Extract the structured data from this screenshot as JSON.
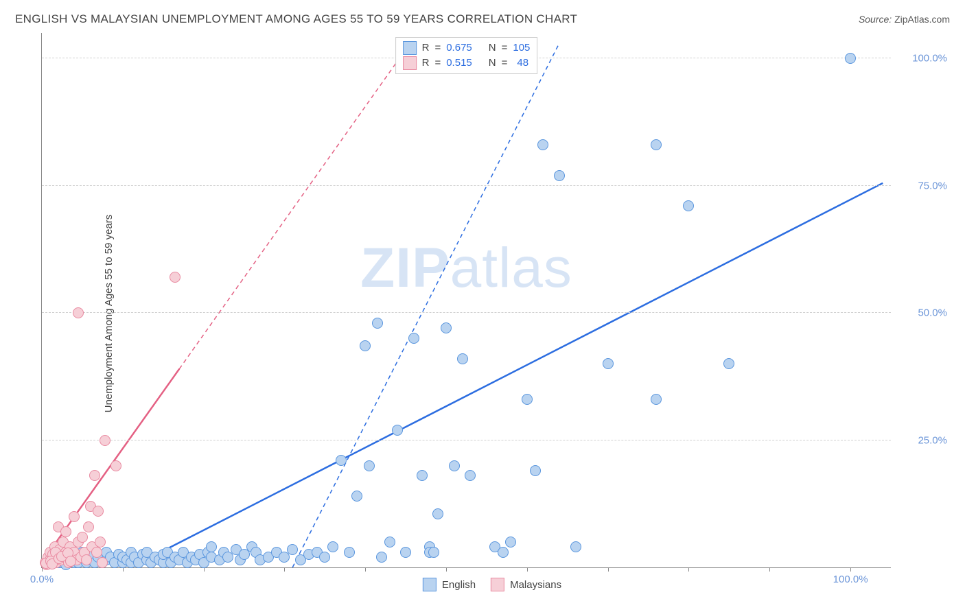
{
  "title": "ENGLISH VS MALAYSIAN UNEMPLOYMENT AMONG AGES 55 TO 59 YEARS CORRELATION CHART",
  "source_label": "Source:",
  "source_name": "ZipAtlas.com",
  "watermark_a": "ZIP",
  "watermark_b": "atlas",
  "y_axis_label": "Unemployment Among Ages 55 to 59 years",
  "chart": {
    "type": "scatter",
    "background_color": "#ffffff",
    "grid_color": "#d0d0d0",
    "axis_color": "#888888",
    "tick_label_color": "#6b95d8",
    "tick_fontsize": 15,
    "xlim": [
      0,
      105
    ],
    "ylim": [
      0,
      105
    ],
    "x_tick_positions": [
      0,
      10,
      20,
      30,
      40,
      50,
      60,
      70,
      80,
      90,
      100
    ],
    "y_grid_positions": [
      25,
      50,
      75,
      100
    ],
    "x_tick_labels": {
      "0": "0.0%",
      "100": "100.0%"
    },
    "y_tick_labels": {
      "25": "25.0%",
      "50": "50.0%",
      "75": "75.0%",
      "100": "100.0%"
    },
    "marker_radius": 8,
    "marker_stroke_width": 1.5,
    "trend_line_width": 2.5,
    "trend_dash_width": 1.5,
    "series": [
      {
        "name": "English",
        "fill_color": "#b9d3f0",
        "stroke_color": "#5a96de",
        "trend_color": "#2c6de0",
        "R": "0.675",
        "N": "105",
        "trend_solid": {
          "x1": 11,
          "y1": 0,
          "x2": 104,
          "y2": 75.5
        },
        "trend_dash": {
          "x1": 31,
          "y1": 0,
          "x2": 64,
          "y2": 103
        },
        "points": [
          [
            1,
            1
          ],
          [
            1.5,
            2
          ],
          [
            2,
            1
          ],
          [
            2,
            2.5
          ],
          [
            2.5,
            1
          ],
          [
            3,
            0.5
          ],
          [
            3,
            2
          ],
          [
            3.5,
            1.5
          ],
          [
            4,
            1
          ],
          [
            4,
            2.5
          ],
          [
            4.5,
            1
          ],
          [
            5,
            2
          ],
          [
            5,
            3
          ],
          [
            5.5,
            1
          ],
          [
            6,
            1.5
          ],
          [
            6,
            2.5
          ],
          [
            6.5,
            1
          ],
          [
            7,
            2
          ],
          [
            7.5,
            1
          ],
          [
            8,
            1.5
          ],
          [
            8,
            3
          ],
          [
            8.5,
            2
          ],
          [
            9,
            1
          ],
          [
            9.5,
            2.5
          ],
          [
            10,
            1
          ],
          [
            10,
            2
          ],
          [
            10.5,
            1.5
          ],
          [
            11,
            1
          ],
          [
            11,
            3
          ],
          [
            11.5,
            2
          ],
          [
            12,
            1
          ],
          [
            12.5,
            2.5
          ],
          [
            13,
            1.5
          ],
          [
            13,
            3
          ],
          [
            13.5,
            1
          ],
          [
            14,
            2
          ],
          [
            14.5,
            1.5
          ],
          [
            15,
            1
          ],
          [
            15,
            2.5
          ],
          [
            15.5,
            3
          ],
          [
            16,
            1
          ],
          [
            16.5,
            2
          ],
          [
            17,
            1.5
          ],
          [
            17.5,
            3
          ],
          [
            18,
            1
          ],
          [
            18.5,
            2
          ],
          [
            19,
            1.5
          ],
          [
            19.5,
            2.5
          ],
          [
            20,
            1
          ],
          [
            20.5,
            3
          ],
          [
            21,
            4
          ],
          [
            21,
            2
          ],
          [
            22,
            1.5
          ],
          [
            22.5,
            3
          ],
          [
            23,
            2
          ],
          [
            24,
            3.5
          ],
          [
            24.5,
            1.5
          ],
          [
            25,
            2.5
          ],
          [
            26,
            4
          ],
          [
            26.5,
            3
          ],
          [
            27,
            1.5
          ],
          [
            28,
            2
          ],
          [
            29,
            3
          ],
          [
            30,
            2
          ],
          [
            31,
            3.5
          ],
          [
            32,
            1.5
          ],
          [
            33,
            2.5
          ],
          [
            34,
            3
          ],
          [
            35,
            2
          ],
          [
            36,
            4
          ],
          [
            37,
            21
          ],
          [
            38,
            3
          ],
          [
            39,
            14
          ],
          [
            40,
            43.5
          ],
          [
            40.5,
            20
          ],
          [
            41.5,
            48
          ],
          [
            42,
            2
          ],
          [
            43,
            5
          ],
          [
            44,
            27
          ],
          [
            45,
            3
          ],
          [
            46,
            45
          ],
          [
            47,
            18
          ],
          [
            48,
            4
          ],
          [
            48,
            3
          ],
          [
            48.5,
            3
          ],
          [
            49,
            10.5
          ],
          [
            50,
            47
          ],
          [
            51,
            20
          ],
          [
            52,
            41
          ],
          [
            53,
            18
          ],
          [
            56,
            4
          ],
          [
            57,
            3
          ],
          [
            58,
            5
          ],
          [
            60,
            33
          ],
          [
            60,
            100
          ],
          [
            61,
            19
          ],
          [
            62,
            83
          ],
          [
            64,
            77
          ],
          [
            66,
            4
          ],
          [
            70,
            40
          ],
          [
            76,
            83
          ],
          [
            76,
            33
          ],
          [
            80,
            71
          ],
          [
            85,
            40
          ],
          [
            100,
            100
          ]
        ]
      },
      {
        "name": "Malaysians",
        "fill_color": "#f6cfd7",
        "stroke_color": "#e98aa1",
        "trend_color": "#e46083",
        "R": "0.515",
        "N": "48",
        "trend_solid": {
          "x1": 0,
          "y1": 1,
          "x2": 17,
          "y2": 39
        },
        "trend_dash": {
          "x1": 17,
          "y1": 39,
          "x2": 46,
          "y2": 104
        },
        "points": [
          [
            0.4,
            1
          ],
          [
            0.6,
            0.5
          ],
          [
            0.8,
            2
          ],
          [
            1,
            1.5
          ],
          [
            1,
            3
          ],
          [
            1.2,
            1
          ],
          [
            1.4,
            2.5
          ],
          [
            1.6,
            4
          ],
          [
            1.8,
            1
          ],
          [
            2,
            8
          ],
          [
            2,
            2
          ],
          [
            2.2,
            3.5
          ],
          [
            2.4,
            1.5
          ],
          [
            2.6,
            5
          ],
          [
            2.8,
            2.5
          ],
          [
            3,
            7
          ],
          [
            3,
            3
          ],
          [
            3.3,
            1
          ],
          [
            3.5,
            4
          ],
          [
            3.8,
            2.5
          ],
          [
            4,
            10
          ],
          [
            4,
            3
          ],
          [
            4.3,
            1.5
          ],
          [
            4.5,
            5
          ],
          [
            4.8,
            2
          ],
          [
            5,
            6
          ],
          [
            5.3,
            3
          ],
          [
            5.5,
            1.5
          ],
          [
            5.8,
            8
          ],
          [
            6,
            12
          ],
          [
            6.2,
            4
          ],
          [
            6.5,
            18
          ],
          [
            6.8,
            3
          ],
          [
            7,
            11
          ],
          [
            7.2,
            5
          ],
          [
            7.5,
            1
          ],
          [
            7.8,
            25
          ],
          [
            9.2,
            20
          ],
          [
            4.5,
            50
          ],
          [
            16.5,
            57
          ],
          [
            0.5,
            0.8
          ],
          [
            1.1,
            1.2
          ],
          [
            1.3,
            0.7
          ],
          [
            1.7,
            3
          ],
          [
            2.1,
            1.8
          ],
          [
            2.5,
            2.2
          ],
          [
            3.2,
            2.8
          ],
          [
            3.6,
            1.2
          ]
        ]
      }
    ]
  },
  "legend_top_label_R": "R",
  "legend_top_label_N": "N",
  "legend_bottom": [
    {
      "label": "English",
      "fill": "#b9d3f0",
      "stroke": "#5a96de"
    },
    {
      "label": "Malaysians",
      "fill": "#f6cfd7",
      "stroke": "#e98aa1"
    }
  ]
}
